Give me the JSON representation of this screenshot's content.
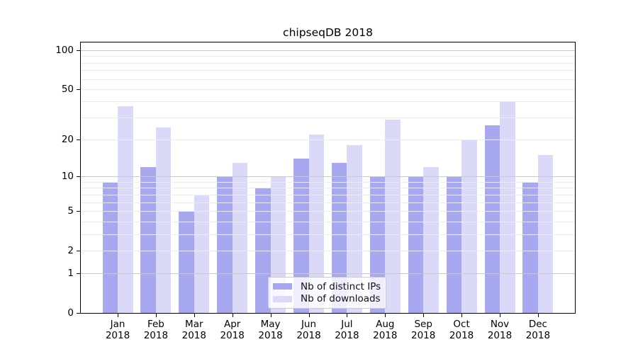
{
  "chart_data": {
    "type": "bar",
    "title": "chipseqDB 2018",
    "year_label": "2018",
    "categories": [
      "Jan",
      "Feb",
      "Mar",
      "Apr",
      "May",
      "Jun",
      "Jul",
      "Aug",
      "Sep",
      "Oct",
      "Nov",
      "Dec"
    ],
    "series": [
      {
        "name": "Nb of distinct IPs",
        "color": "#a8a8f0",
        "values": [
          9,
          12,
          5,
          10,
          8,
          14,
          13,
          10,
          10,
          10,
          26,
          9
        ]
      },
      {
        "name": "Nb of downloads",
        "color": "#dadaf8",
        "values": [
          37,
          25,
          7,
          13,
          10,
          22,
          18,
          29,
          12,
          20,
          40,
          15
        ]
      }
    ],
    "yscale": "log1p",
    "ylim": [
      0,
      116
    ],
    "yticks": [
      0,
      1,
      2,
      5,
      10,
      20,
      50,
      100
    ],
    "major_gridlines": [
      1,
      10,
      100
    ],
    "minor_gridlines": [
      2,
      3,
      4,
      5,
      6,
      7,
      8,
      9,
      20,
      30,
      40,
      50,
      60,
      70,
      80,
      90
    ],
    "grid": true,
    "legend_position": "lower center inside"
  },
  "colors": {
    "background": "#ffffff",
    "axis": "#000000",
    "text": "#000000",
    "major_grid": "#c9c9c9",
    "minor_grid": "#ececec",
    "legend_border": "#cccccc",
    "legend_bg": "rgba(255,255,255,0.8)"
  }
}
